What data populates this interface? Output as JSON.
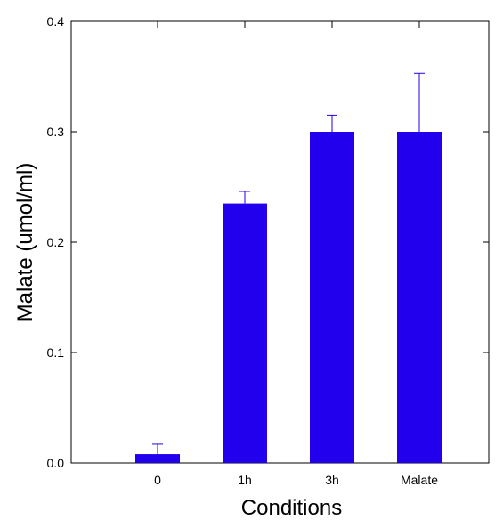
{
  "chart_data": {
    "type": "bar",
    "title": "",
    "xlabel": "Conditions",
    "ylabel": "Malate (umol/ml)",
    "categories": [
      "0",
      "1h",
      "3h",
      "Malate"
    ],
    "values": [
      0.008,
      0.235,
      0.3,
      0.3
    ],
    "errors": [
      0.009,
      0.011,
      0.015,
      0.053
    ],
    "ylim": [
      0,
      0.4
    ],
    "yticks": [
      0.0,
      0.1,
      0.2,
      0.3,
      0.4
    ],
    "ytick_labels": [
      "0.0",
      "0.1",
      "0.2",
      "0.3",
      "0.4"
    ],
    "bar_color": "#2200ee",
    "error_color": "#2200ee",
    "axis_color": "#000000",
    "grid": false,
    "legend": "none"
  }
}
